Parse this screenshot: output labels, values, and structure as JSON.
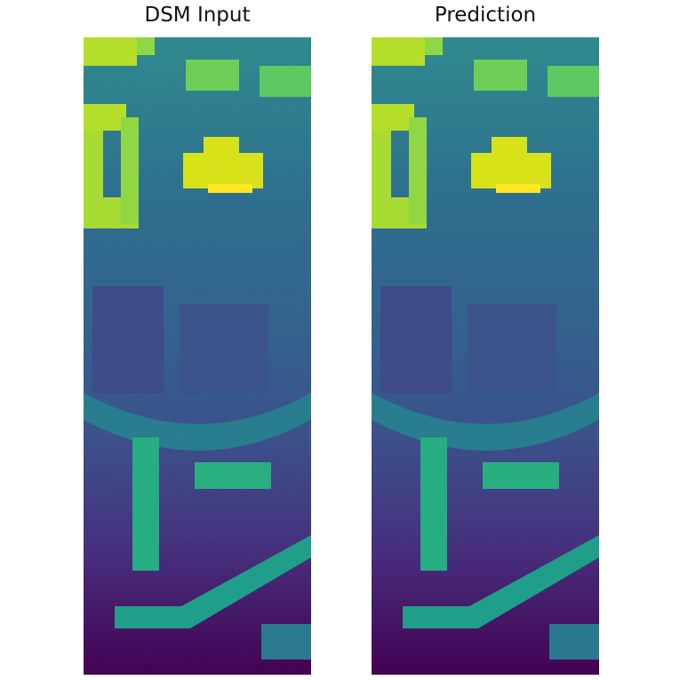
{
  "figure": {
    "panels": [
      {
        "title": "DSM Input",
        "image_kind": "noisy-dsm-heightmap",
        "colormap": "viridis"
      },
      {
        "title": "Prediction",
        "image_kind": "refined-dsm-heightmap",
        "colormap": "viridis"
      }
    ]
  }
}
